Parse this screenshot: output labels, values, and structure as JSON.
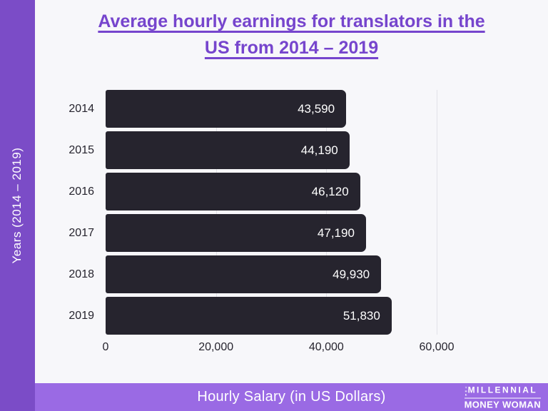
{
  "title": {
    "line1": "Average hourly earnings for translators in the",
    "line2": "US from 2014 – 2019"
  },
  "frame": {
    "y_axis_title": "Years (2014 – 2019)",
    "x_axis_title": "Hourly Salary (in US Dollars)",
    "colors": {
      "left_column": "#7b4cc7",
      "bottom_bar": "#9a6ae4",
      "title_text": "#7645cd",
      "bar_fill": "#26242e",
      "background": "#f7f7fa",
      "gridline": "#e2e2e8"
    }
  },
  "logo": {
    "the": "THE",
    "millennial": "MILLENNIAL",
    "money_woman": "MONEY WOMAN"
  },
  "chart_data": {
    "type": "bar",
    "orientation": "horizontal",
    "title": "Average hourly earnings for translators in the US from 2014 – 2019",
    "xlabel": "Hourly Salary (in US Dollars)",
    "ylabel": "Years (2014 – 2019)",
    "categories": [
      "2014",
      "2015",
      "2016",
      "2017",
      "2018",
      "2019"
    ],
    "values": [
      43590,
      44190,
      46120,
      47190,
      49930,
      51830
    ],
    "value_labels": [
      "43,590",
      "44,190",
      "46,120",
      "47,190",
      "49,930",
      "51,830"
    ],
    "xlim": [
      0,
      60000
    ],
    "xticks": [
      0,
      20000,
      40000,
      60000
    ],
    "xtick_labels": [
      "0",
      "20,000",
      "40,000",
      "60,000"
    ],
    "grid": true,
    "legend": false,
    "bar_color": "#26242e"
  }
}
